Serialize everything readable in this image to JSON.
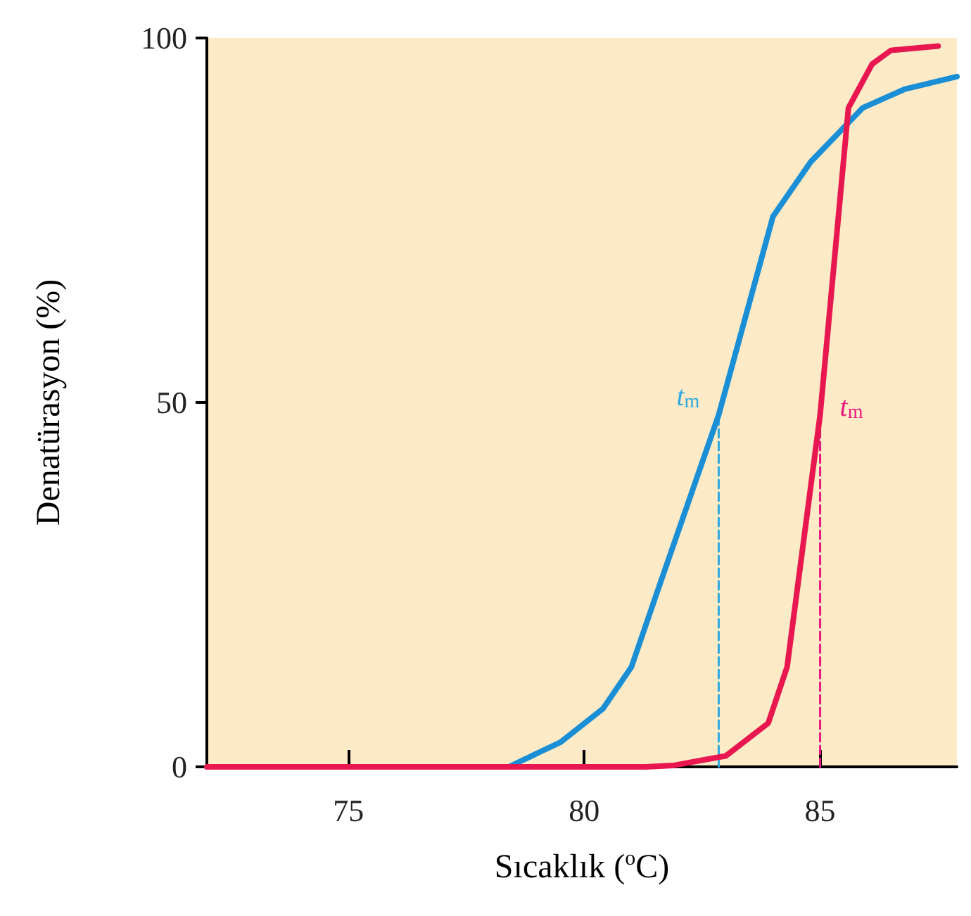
{
  "chart_data": {
    "type": "line",
    "xlabel": "Sıcaklık ($^{o}$C)",
    "ylabel": "Denatürasyon (%)",
    "xlim": [
      72,
      87.9
    ],
    "xticks": [
      75,
      80,
      85
    ],
    "ylim": [
      0,
      100
    ],
    "yticks": [
      0,
      50,
      100
    ],
    "grid": false,
    "marker": "none",
    "line_style": "solid",
    "series": [
      {
        "color": "#1a8fd6",
        "x": [
          72,
          78.4,
          79.5,
          80.4,
          81.0,
          81.6,
          82.85,
          84.0,
          84.8,
          85.9,
          86.8,
          87.9
        ],
        "values": [
          0,
          0,
          3.4,
          8,
          13.7,
          25,
          48.3,
          75.5,
          83,
          90.4,
          93,
          94.7
        ]
      },
      {
        "color": "#e8174f",
        "x": [
          72,
          81.3,
          81.9,
          83.0,
          83.9,
          84.3,
          85.0,
          85.6,
          86.1,
          86.5,
          87.5
        ],
        "values": [
          0,
          0,
          0.2,
          1.5,
          6,
          13.7,
          48.3,
          90.4,
          96.4,
          98.3,
          98.9
        ]
      },
      {
        "color": "#2aa8e0",
        "line_style": "dashed",
        "x": [
          82.85,
          82.85
        ],
        "values": [
          0,
          48.3
        ]
      },
      {
        "color": "#e8177f",
        "line_style": "dashed",
        "x": [
          85.0,
          85.0
        ],
        "values": [
          0,
          46.8
        ]
      }
    ],
    "annotations": [
      "t$_{m}$",
      "t$_{m}$"
    ]
  }
}
